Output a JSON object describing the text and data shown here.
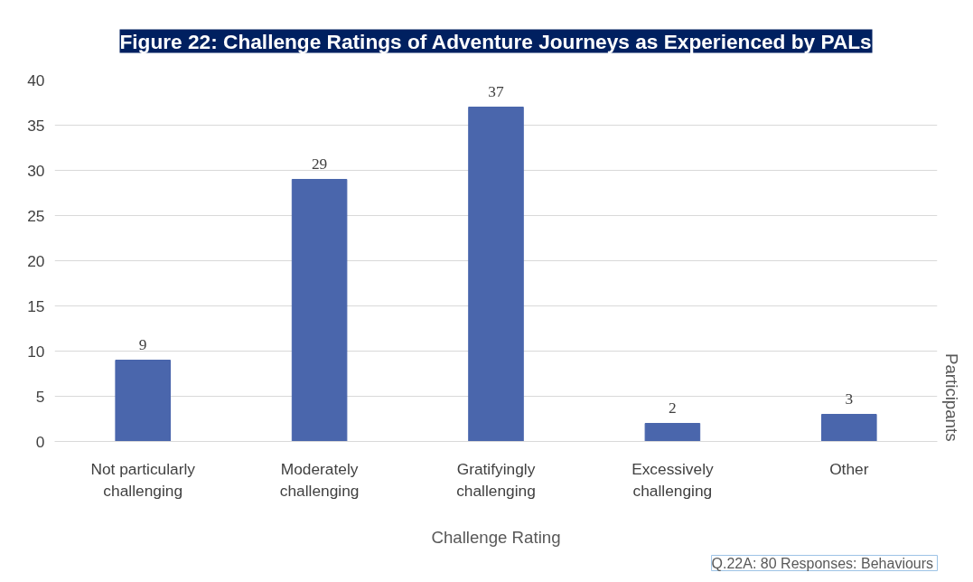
{
  "chart_data": {
    "type": "bar",
    "title": "Figure 22: Challenge Ratings of Adventure Journeys as Experienced by PALs",
    "categories": [
      "Not particularly challenging",
      "Moderately challenging",
      "Gratifyingly challenging",
      "Excessively challenging",
      "Other"
    ],
    "values": [
      9,
      29,
      37,
      2,
      3
    ],
    "color": "#4a66ac",
    "ylim": [
      0,
      40
    ],
    "yticks": [
      0,
      5,
      10,
      15,
      20,
      25,
      30,
      35,
      40
    ],
    "grid": "y",
    "data_labels": true,
    "xlabel": "Challenge Rating",
    "ylabel": "Participants",
    "annotations": [
      "Q.22A:  80 Responses: Behaviours"
    ]
  }
}
